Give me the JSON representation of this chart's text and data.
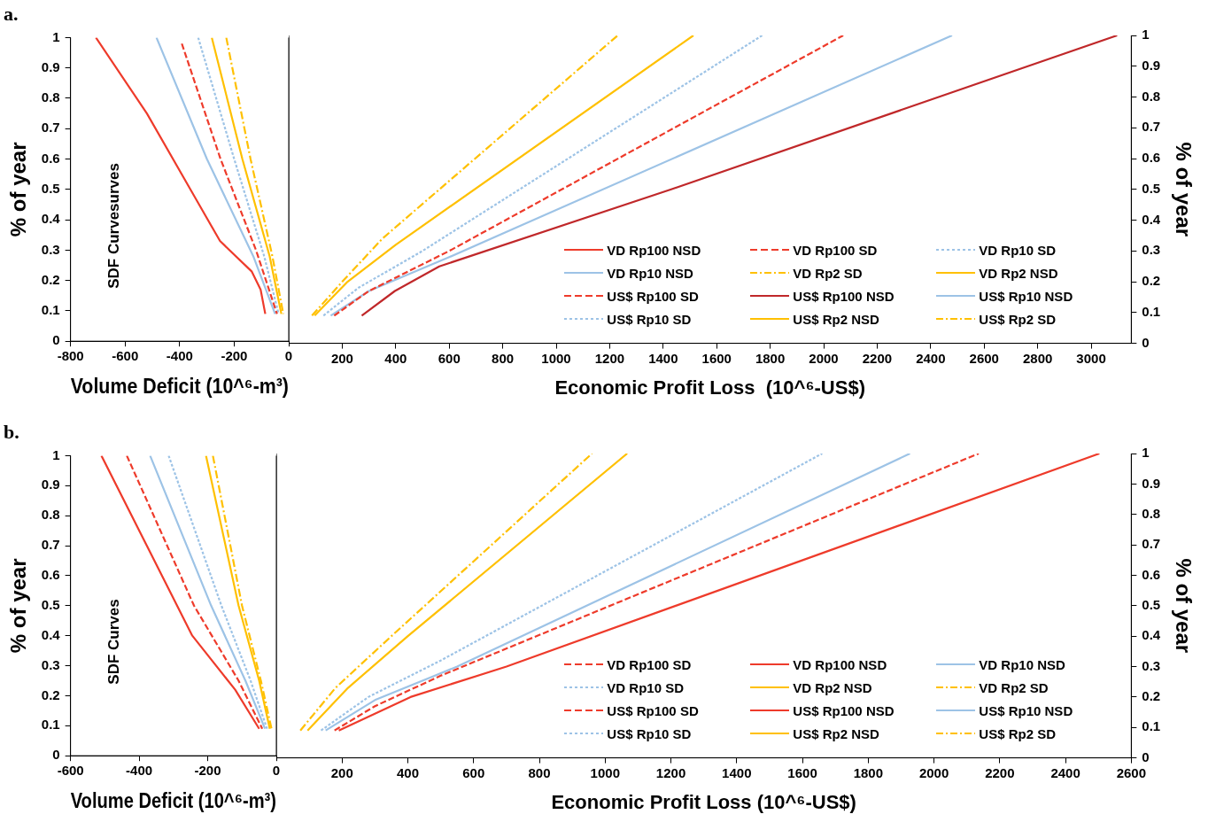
{
  "chart_data": [
    {
      "type": "line",
      "title": "a.",
      "xlabel": "Volume Deficit (10^⁶-m³)",
      "ylabel": "% of year",
      "annotations": [
        "SDF Curvesurves"
      ],
      "xlim": [
        -800,
        0
      ],
      "xticks": [
        -800,
        -600,
        -400,
        -200,
        0
      ],
      "ylim": [
        0,
        1
      ],
      "yticks": [
        0,
        0.1,
        0.2,
        0.3,
        0.4,
        0.5,
        0.6,
        0.7,
        0.8,
        0.9,
        1
      ],
      "grid": false,
      "legend": "right",
      "marker": "none",
      "series": [
        {
          "name": "VD Rp100 NSD",
          "color": "#ee3b2b",
          "line_style": "solid",
          "x": [
            -707,
            -520,
            -335,
            -252,
            -136,
            -103,
            -86
          ],
          "values": [
            1,
            0.75,
            0.46,
            0.33,
            0.23,
            0.17,
            0.09
          ]
        },
        {
          "name": "VD Rp100 SD",
          "color": "#ee3b2b",
          "line_style": "dashed",
          "x": [
            -392,
            -250,
            -120,
            -43
          ],
          "values": [
            0.98,
            0.6,
            0.3,
            0.09
          ]
        },
        {
          "name": "VD Rp10 SD",
          "color": "#9dc3e6",
          "line_style": "dotted",
          "x": [
            -332,
            -200,
            -90,
            -37
          ],
          "values": [
            1,
            0.6,
            0.28,
            0.09
          ]
        },
        {
          "name": "VD Rp10 NSD",
          "color": "#9dc3e6",
          "line_style": "solid",
          "x": [
            -485,
            -300,
            -130,
            -50
          ],
          "values": [
            1,
            0.6,
            0.28,
            0.09
          ]
        },
        {
          "name": "VD Rp2 SD",
          "color": "#ffc000",
          "line_style": "dashdot",
          "x": [
            -229,
            -140,
            -60,
            -20
          ],
          "values": [
            1,
            0.6,
            0.28,
            0.09
          ]
        },
        {
          "name": "VD Rp2 NSD",
          "color": "#ffc000",
          "line_style": "solid",
          "x": [
            -282,
            -170,
            -70,
            -27
          ],
          "values": [
            1,
            0.6,
            0.28,
            0.09
          ]
        }
      ]
    },
    {
      "type": "line",
      "xlabel": "Economic Profit Loss  (10^⁶-US$)",
      "ylabel": "% of year",
      "xlim": [
        0,
        3150
      ],
      "xticks": [
        200,
        400,
        600,
        800,
        1000,
        1200,
        1400,
        1600,
        1800,
        2000,
        2200,
        2400,
        2600,
        2800,
        3000
      ],
      "ylim": [
        0,
        1
      ],
      "yticks": [
        0,
        0.1,
        0.2,
        0.3,
        0.4,
        0.5,
        0.6,
        0.7,
        0.8,
        0.9,
        1
      ],
      "grid": false,
      "legend": "bottom right",
      "marker": "none",
      "series": [
        {
          "name": "US$ Rp100 SD",
          "color": "#ee3b2b",
          "line_style": "dashed",
          "x": [
            170,
            300,
            600,
            2073
          ],
          "values": [
            0.09,
            0.17,
            0.3,
            1
          ]
        },
        {
          "name": "US$ Rp100 NSD",
          "color": "#c0282a",
          "line_style": "solid",
          "x": [
            273,
            397,
            563,
            1430,
            3097
          ],
          "values": [
            0.09,
            0.17,
            0.25,
            0.5,
            1
          ]
        },
        {
          "name": "US$ Rp10 NSD",
          "color": "#9dc3e6",
          "line_style": "solid",
          "x": [
            157,
            300,
            600,
            2480
          ],
          "values": [
            0.09,
            0.17,
            0.28,
            1
          ]
        },
        {
          "name": "US$ Rp10 SD",
          "color": "#9dc3e6",
          "line_style": "dotted",
          "x": [
            130,
            260,
            500,
            1770
          ],
          "values": [
            0.09,
            0.18,
            0.3,
            1
          ]
        },
        {
          "name": "US$ Rp2 NSD",
          "color": "#ffc000",
          "line_style": "solid",
          "x": [
            97,
            220,
            400,
            1513
          ],
          "values": [
            0.09,
            0.2,
            0.32,
            1
          ]
        },
        {
          "name": "US$ Rp2 SD",
          "color": "#ffc000",
          "line_style": "dashdot",
          "x": [
            87,
            200,
            350,
            1230
          ],
          "values": [
            0.09,
            0.2,
            0.34,
            1
          ]
        }
      ]
    },
    {
      "type": "line",
      "title": "b.",
      "xlabel": "Volume Deficit (10^⁶-m³)",
      "ylabel": "% of year",
      "annotations": [
        "SDF Curves"
      ],
      "xlim": [
        -600,
        0
      ],
      "xticks": [
        -600,
        -400,
        -200,
        0
      ],
      "ylim": [
        0,
        1
      ],
      "yticks": [
        0,
        0.1,
        0.2,
        0.3,
        0.4,
        0.5,
        0.6,
        0.7,
        0.8,
        0.9,
        1
      ],
      "grid": false,
      "legend": "right",
      "marker": "none",
      "series": [
        {
          "name": "VD Rp100 SD",
          "color": "#ee3b2b",
          "line_style": "dashed",
          "x": [
            -436,
            -240,
            -110,
            -41
          ],
          "values": [
            1,
            0.5,
            0.25,
            0.09
          ]
        },
        {
          "name": "VD Rp100 NSD",
          "color": "#ee3b2b",
          "line_style": "solid",
          "x": [
            -510,
            -245,
            -120,
            -50
          ],
          "values": [
            1,
            0.4,
            0.22,
            0.09
          ]
        },
        {
          "name": "VD Rp10 NSD",
          "color": "#9dc3e6",
          "line_style": "solid",
          "x": [
            -368,
            -190,
            -90,
            -33
          ],
          "values": [
            1,
            0.5,
            0.25,
            0.09
          ]
        },
        {
          "name": "VD Rp10 SD",
          "color": "#9dc3e6",
          "line_style": "dotted",
          "x": [
            -314,
            -160,
            -75,
            -27
          ],
          "values": [
            1,
            0.5,
            0.25,
            0.09
          ]
        },
        {
          "name": "VD Rp2 NSD",
          "color": "#ffc000",
          "line_style": "solid",
          "x": [
            -205,
            -110,
            -50,
            -19
          ],
          "values": [
            1,
            0.5,
            0.25,
            0.09
          ]
        },
        {
          "name": "VD Rp2 SD",
          "color": "#ffc000",
          "line_style": "dashdot",
          "x": [
            -185,
            -100,
            -45,
            -14
          ],
          "values": [
            1,
            0.5,
            0.25,
            0.09
          ]
        }
      ]
    },
    {
      "type": "line",
      "xlabel": "Economic Profit Loss (10^⁶-US$)",
      "ylabel": "% of year",
      "xlim": [
        0,
        2600
      ],
      "xticks": [
        200,
        400,
        600,
        800,
        1000,
        1200,
        1400,
        1600,
        1800,
        2000,
        2200,
        2400,
        2600
      ],
      "ylim": [
        0,
        1
      ],
      "yticks": [
        0,
        0.1,
        0.2,
        0.3,
        0.4,
        0.5,
        0.6,
        0.7,
        0.8,
        0.9,
        1
      ],
      "grid": false,
      "legend": "bottom right",
      "marker": "none",
      "series": [
        {
          "name": "US$ Rp100 SD",
          "color": "#ee3b2b",
          "line_style": "dashed",
          "x": [
            177,
            300,
            500,
            2136
          ],
          "values": [
            0.09,
            0.17,
            0.27,
            1
          ]
        },
        {
          "name": "US$ Rp100 NSD",
          "color": "#ee3b2b",
          "line_style": "solid",
          "x": [
            190,
            408,
            700,
            2503
          ],
          "values": [
            0.09,
            0.2,
            0.3,
            1
          ]
        },
        {
          "name": "US$ Rp10 NSD",
          "color": "#9dc3e6",
          "line_style": "solid",
          "x": [
            150,
            300,
            550,
            1927
          ],
          "values": [
            0.09,
            0.19,
            0.3,
            1
          ]
        },
        {
          "name": "US$ Rp10 SD",
          "color": "#9dc3e6",
          "line_style": "dotted",
          "x": [
            136,
            280,
            500,
            1660
          ],
          "values": [
            0.09,
            0.2,
            0.32,
            1
          ]
        },
        {
          "name": "US$ Rp2 NSD",
          "color": "#ffc000",
          "line_style": "solid",
          "x": [
            95,
            218,
            400,
            1067
          ],
          "values": [
            0.09,
            0.23,
            0.4,
            1
          ]
        },
        {
          "name": "US$ Rp2 SD",
          "color": "#ffc000",
          "line_style": "dashdot",
          "x": [
            73,
            180,
            350,
            960
          ],
          "values": [
            0.09,
            0.23,
            0.4,
            1
          ]
        }
      ]
    }
  ]
}
